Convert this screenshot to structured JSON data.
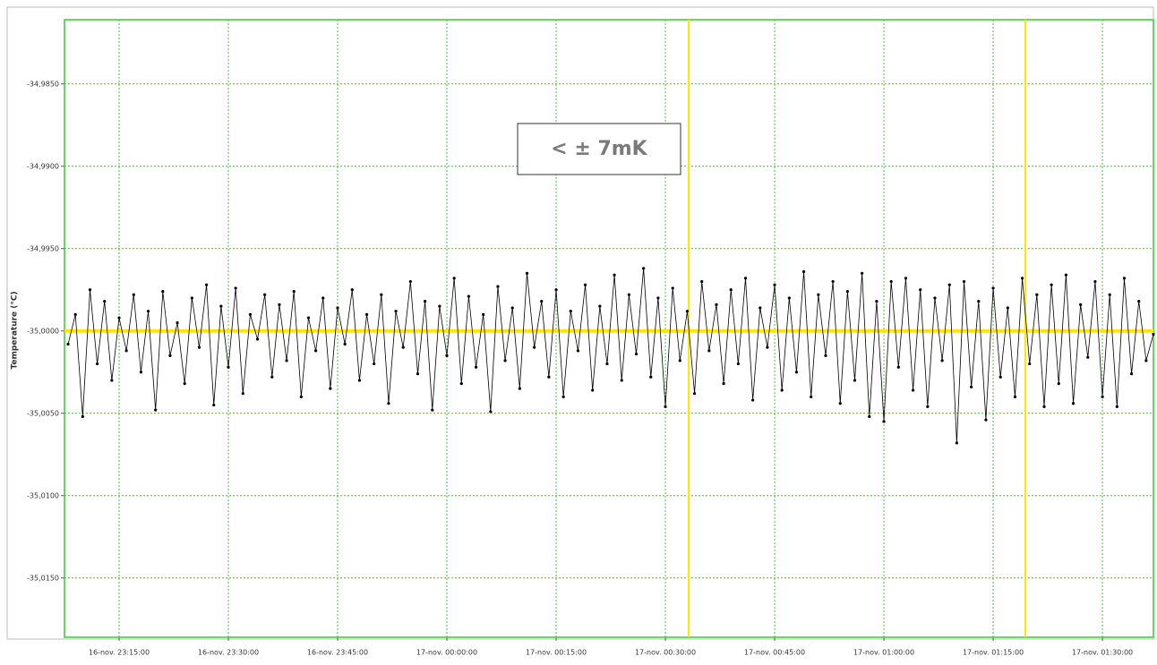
{
  "chart_data": {
    "type": "line",
    "ylabel": "Temperature (°C)",
    "annotation": "< ± 7mK",
    "color": "#000000",
    "grid": true,
    "grid_color": "#33cc33",
    "ylim": [
      -35.0186,
      -34.9811
    ],
    "yticks": [
      {
        "value": -34.985,
        "label": "-34,9850"
      },
      {
        "value": -34.99,
        "label": "-34,9900"
      },
      {
        "value": -34.995,
        "label": "-34,9950"
      },
      {
        "value": -35.0,
        "label": "-35,0000"
      },
      {
        "value": -35.005,
        "label": "-35,0050"
      },
      {
        "value": -35.01,
        "label": "-35,0100"
      },
      {
        "value": -35.015,
        "label": "-35,0150"
      }
    ],
    "xlim": [
      "16-nov. 23:07:30",
      "17-nov. 01:37:00"
    ],
    "xticks": [
      "16-nov. 23:15:00",
      "16-nov. 23:30:00",
      "16-nov. 23:45:00",
      "17-nov. 00:00:00",
      "17-nov. 00:15:00",
      "17-nov. 00:30:00",
      "17-nov. 00:45:00",
      "17-nov. 01:00:00",
      "17-nov. 01:15:00",
      "17-nov. 01:30:00"
    ],
    "reference_lines": {
      "color": "#ffe600",
      "y": -35.0,
      "x": [
        "17-nov. 00:33:12",
        "17-nov. 01:19:25"
      ]
    },
    "x": [
      "16-nov. 23:08:00",
      "16-nov. 23:09:00",
      "16-nov. 23:10:00",
      "16-nov. 23:11:00",
      "16-nov. 23:12:00",
      "16-nov. 23:13:00",
      "16-nov. 23:14:00",
      "16-nov. 23:15:00",
      "16-nov. 23:16:00",
      "16-nov. 23:17:00",
      "16-nov. 23:18:00",
      "16-nov. 23:19:00",
      "16-nov. 23:20:00",
      "16-nov. 23:21:00",
      "16-nov. 23:22:00",
      "16-nov. 23:23:00",
      "16-nov. 23:24:00",
      "16-nov. 23:25:00",
      "16-nov. 23:26:00",
      "16-nov. 23:27:00",
      "16-nov. 23:28:00",
      "16-nov. 23:29:00",
      "16-nov. 23:30:00",
      "16-nov. 23:31:00",
      "16-nov. 23:32:00",
      "16-nov. 23:33:00",
      "16-nov. 23:34:00",
      "16-nov. 23:35:00",
      "16-nov. 23:36:00",
      "16-nov. 23:37:00",
      "16-nov. 23:38:00",
      "16-nov. 23:39:00",
      "16-nov. 23:40:00",
      "16-nov. 23:41:00",
      "16-nov. 23:42:00",
      "16-nov. 23:43:00",
      "16-nov. 23:44:00",
      "16-nov. 23:45:00",
      "16-nov. 23:46:00",
      "16-nov. 23:47:00",
      "16-nov. 23:48:00",
      "16-nov. 23:49:00",
      "16-nov. 23:50:00",
      "16-nov. 23:51:00",
      "16-nov. 23:52:00",
      "16-nov. 23:53:00",
      "16-nov. 23:54:00",
      "16-nov. 23:55:00",
      "16-nov. 23:56:00",
      "16-nov. 23:57:00",
      "16-nov. 23:58:00",
      "16-nov. 23:59:00",
      "17-nov. 00:00:00",
      "17-nov. 00:01:00",
      "17-nov. 00:02:00",
      "17-nov. 00:03:00",
      "17-nov. 00:04:00",
      "17-nov. 00:05:00",
      "17-nov. 00:06:00",
      "17-nov. 00:07:00",
      "17-nov. 00:08:00",
      "17-nov. 00:09:00",
      "17-nov. 00:10:00",
      "17-nov. 00:11:00",
      "17-nov. 00:12:00",
      "17-nov. 00:13:00",
      "17-nov. 00:14:00",
      "17-nov. 00:15:00",
      "17-nov. 00:16:00",
      "17-nov. 00:17:00",
      "17-nov. 00:18:00",
      "17-nov. 00:19:00",
      "17-nov. 00:20:00",
      "17-nov. 00:21:00",
      "17-nov. 00:22:00",
      "17-nov. 00:23:00",
      "17-nov. 00:24:00",
      "17-nov. 00:25:00",
      "17-nov. 00:26:00",
      "17-nov. 00:27:00",
      "17-nov. 00:28:00",
      "17-nov. 00:29:00",
      "17-nov. 00:30:00",
      "17-nov. 00:31:00",
      "17-nov. 00:32:00",
      "17-nov. 00:33:00",
      "17-nov. 00:34:00",
      "17-nov. 00:35:00",
      "17-nov. 00:36:00",
      "17-nov. 00:37:00",
      "17-nov. 00:38:00",
      "17-nov. 00:39:00",
      "17-nov. 00:40:00",
      "17-nov. 00:41:00",
      "17-nov. 00:42:00",
      "17-nov. 00:43:00",
      "17-nov. 00:44:00",
      "17-nov. 00:45:00",
      "17-nov. 00:46:00",
      "17-nov. 00:47:00",
      "17-nov. 00:48:00",
      "17-nov. 00:49:00",
      "17-nov. 00:50:00",
      "17-nov. 00:51:00",
      "17-nov. 00:52:00",
      "17-nov. 00:53:00",
      "17-nov. 00:54:00",
      "17-nov. 00:55:00",
      "17-nov. 00:56:00",
      "17-nov. 00:57:00",
      "17-nov. 00:58:00",
      "17-nov. 00:59:00",
      "17-nov. 01:00:00",
      "17-nov. 01:01:00",
      "17-nov. 01:02:00",
      "17-nov. 01:03:00",
      "17-nov. 01:04:00",
      "17-nov. 01:05:00",
      "17-nov. 01:06:00",
      "17-nov. 01:07:00",
      "17-nov. 01:08:00",
      "17-nov. 01:09:00",
      "17-nov. 01:10:00",
      "17-nov. 01:11:00",
      "17-nov. 01:12:00",
      "17-nov. 01:13:00",
      "17-nov. 01:14:00",
      "17-nov. 01:15:00",
      "17-nov. 01:16:00",
      "17-nov. 01:17:00",
      "17-nov. 01:18:00",
      "17-nov. 01:19:00",
      "17-nov. 01:20:00",
      "17-nov. 01:21:00",
      "17-nov. 01:22:00",
      "17-nov. 01:23:00",
      "17-nov. 01:24:00",
      "17-nov. 01:25:00",
      "17-nov. 01:26:00",
      "17-nov. 01:27:00",
      "17-nov. 01:28:00",
      "17-nov. 01:29:00",
      "17-nov. 01:30:00",
      "17-nov. 01:31:00",
      "17-nov. 01:32:00",
      "17-nov. 01:33:00",
      "17-nov. 01:34:00",
      "17-nov. 01:35:00",
      "17-nov. 01:36:00",
      "17-nov. 01:37:00"
    ],
    "values": [
      -35.0008,
      -34.999,
      -35.0052,
      -34.9975,
      -35.002,
      -34.9982,
      -35.003,
      -34.9992,
      -35.0012,
      -34.9978,
      -35.0025,
      -34.9988,
      -35.0048,
      -34.9976,
      -35.0015,
      -34.9995,
      -35.0032,
      -34.998,
      -35.001,
      -34.9972,
      -35.0045,
      -34.9985,
      -35.0022,
      -34.9974,
      -35.0038,
      -34.999,
      -35.0005,
      -34.9978,
      -35.0028,
      -34.9984,
      -35.0018,
      -34.9976,
      -35.004,
      -34.9992,
      -35.0012,
      -34.998,
      -35.0035,
      -34.9986,
      -35.0008,
      -34.9975,
      -35.003,
      -34.999,
      -35.002,
      -34.9978,
      -35.0044,
      -34.9988,
      -35.001,
      -34.997,
      -35.0026,
      -34.9982,
      -35.0048,
      -34.9985,
      -35.0015,
      -34.9968,
      -35.0032,
      -34.9979,
      -35.0022,
      -34.999,
      -35.0049,
      -34.9973,
      -35.0018,
      -34.9986,
      -35.0035,
      -34.9965,
      -35.001,
      -34.9982,
      -35.0028,
      -34.9975,
      -35.004,
      -34.9988,
      -35.0012,
      -34.9972,
      -35.0036,
      -34.9985,
      -35.002,
      -34.9966,
      -35.003,
      -34.9978,
      -35.0014,
      -34.9962,
      -35.0028,
      -34.998,
      -35.0046,
      -34.9974,
      -35.0018,
      -34.9988,
      -35.0038,
      -34.997,
      -35.0012,
      -34.9984,
      -35.0032,
      -34.9975,
      -35.002,
      -34.9968,
      -35.0042,
      -34.9986,
      -35.001,
      -34.9972,
      -35.0036,
      -34.998,
      -35.0025,
      -34.9964,
      -35.004,
      -34.9978,
      -35.0015,
      -34.997,
      -35.0044,
      -34.9976,
      -35.003,
      -34.9965,
      -35.0052,
      -34.9982,
      -35.0055,
      -34.997,
      -35.0022,
      -34.9968,
      -35.0036,
      -34.9975,
      -35.0046,
      -34.998,
      -35.0018,
      -34.9972,
      -35.0068,
      -34.997,
      -35.0034,
      -34.9982,
      -35.0054,
      -34.9974,
      -35.0028,
      -34.9986,
      -35.004,
      -34.9968,
      -35.002,
      -34.9978,
      -35.0046,
      -34.9972,
      -35.0032,
      -34.9966,
      -35.0044,
      -34.9984,
      -35.0016,
      -34.997,
      -35.004,
      -34.9978,
      -35.0046,
      -34.9968,
      -35.0026,
      -34.9982,
      -35.0018,
      -35.0002
    ]
  }
}
